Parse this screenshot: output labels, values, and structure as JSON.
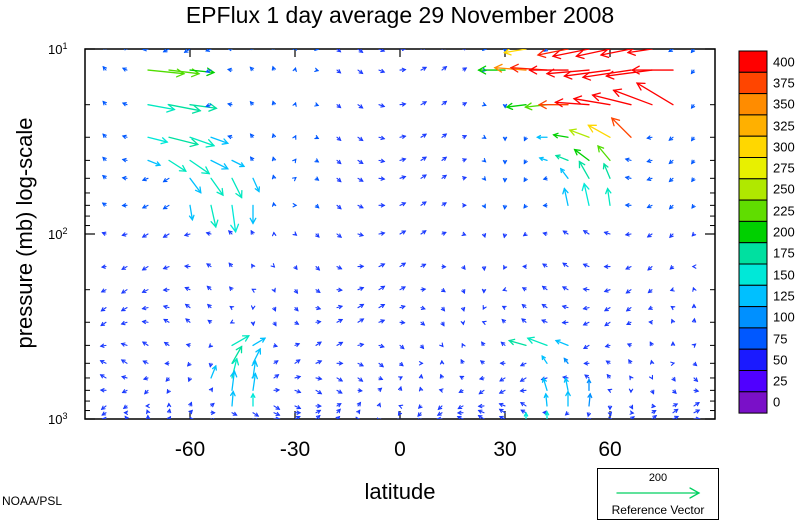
{
  "chart_data": {
    "type": "vector_field",
    "title": "EPFlux  1 day average  29 November 2008",
    "xlabel": "latitude",
    "ylabel": "pressure (mb)  log-scale",
    "y_scale": "log",
    "y_inverted": true,
    "xlim": [
      -90,
      90
    ],
    "ylim": [
      1000,
      10
    ],
    "x_tick_labels": [
      "-60",
      "-30",
      "0",
      "30",
      "60"
    ],
    "x_ticks": [
      -60,
      -30,
      0,
      30,
      60
    ],
    "y_ticks": [
      {
        "value": 10,
        "base": "10",
        "exp": "1"
      },
      {
        "value": 100,
        "base": "10",
        "exp": "2"
      },
      {
        "value": 1000,
        "base": "10",
        "exp": "3"
      }
    ],
    "grid": false,
    "colorbar": {
      "levels": [
        "400",
        "375",
        "350",
        "325",
        "300",
        "275",
        "250",
        "225",
        "200",
        "175",
        "150",
        "125",
        "100",
        "75",
        "50",
        "25",
        "0"
      ],
      "colors": [
        "#ff0000",
        "#ff4500",
        "#ff8c00",
        "#ffb000",
        "#ffd700",
        "#e8f000",
        "#b0e800",
        "#60dd00",
        "#00d000",
        "#00e0a0",
        "#00e8d8",
        "#00c0ff",
        "#0090ff",
        "#0058ff",
        "#1a1aff",
        "#5000ff",
        "#7a10c8"
      ]
    },
    "reference_vector": {
      "value": "200",
      "label": "Reference Vector",
      "color": "#00d060"
    },
    "levels_hpa": [
      10,
      13,
      20,
      30,
      40,
      50,
      70,
      100,
      150,
      200,
      250,
      300,
      400,
      500,
      600,
      700,
      850,
      925,
      1000
    ],
    "highlight_arrows": [
      {
        "lat": -72,
        "p": 13,
        "u": 3.0,
        "v": -0.3,
        "color": "#50dd00"
      },
      {
        "lat": -66,
        "p": 13,
        "u": 2.5,
        "v": -0.3,
        "color": "#50dd00"
      },
      {
        "lat": -60,
        "p": 13,
        "u": 2.0,
        "v": -0.2,
        "color": "#00d000"
      },
      {
        "lat": -72,
        "p": 20,
        "u": 2.2,
        "v": -0.4,
        "color": "#00e8c0"
      },
      {
        "lat": -66,
        "p": 20,
        "u": 2.6,
        "v": -0.5,
        "color": "#00e0a0"
      },
      {
        "lat": -60,
        "p": 20,
        "u": 2.2,
        "v": -0.3,
        "color": "#00e0a0"
      },
      {
        "lat": -72,
        "p": 30,
        "u": 1.6,
        "v": -0.4,
        "color": "#00e8d8"
      },
      {
        "lat": -66,
        "p": 30,
        "u": 2.4,
        "v": -0.6,
        "color": "#00e0a0"
      },
      {
        "lat": -60,
        "p": 30,
        "u": 2.0,
        "v": -0.7,
        "color": "#00e8c0"
      },
      {
        "lat": -54,
        "p": 30,
        "u": 1.4,
        "v": -0.5,
        "color": "#00c0ff"
      },
      {
        "lat": -72,
        "p": 40,
        "u": 1.0,
        "v": -0.4,
        "color": "#00c0ff"
      },
      {
        "lat": -66,
        "p": 40,
        "u": 1.4,
        "v": -0.9,
        "color": "#00e8c0"
      },
      {
        "lat": -60,
        "p": 40,
        "u": 1.6,
        "v": -1.1,
        "color": "#00e8c0"
      },
      {
        "lat": -54,
        "p": 40,
        "u": 1.4,
        "v": -0.7,
        "color": "#00c0ff"
      },
      {
        "lat": -48,
        "p": 40,
        "u": 1.0,
        "v": -0.5,
        "color": "#00c0ff"
      },
      {
        "lat": -60,
        "p": 50,
        "u": 0.9,
        "v": -1.2,
        "color": "#00c0ff"
      },
      {
        "lat": -54,
        "p": 50,
        "u": 1.0,
        "v": -1.4,
        "color": "#00e8c0"
      },
      {
        "lat": -48,
        "p": 50,
        "u": 0.8,
        "v": -1.6,
        "color": "#00e8c0"
      },
      {
        "lat": -42,
        "p": 50,
        "u": 0.5,
        "v": -1.1,
        "color": "#00c0ff"
      },
      {
        "lat": -60,
        "p": 70,
        "u": 0.2,
        "v": -1.2,
        "color": "#00c0ff"
      },
      {
        "lat": -54,
        "p": 70,
        "u": 0.4,
        "v": -1.8,
        "color": "#00e8c0"
      },
      {
        "lat": -48,
        "p": 70,
        "u": 0.3,
        "v": -2.2,
        "color": "#00e8d8"
      },
      {
        "lat": -42,
        "p": 70,
        "u": 0.0,
        "v": -1.5,
        "color": "#00c0ff"
      },
      {
        "lat": 72,
        "p": 10,
        "u": -2.0,
        "v": -0.3,
        "color": "#ff0000"
      },
      {
        "lat": 66,
        "p": 10,
        "u": -2.5,
        "v": -0.5,
        "color": "#ff0000"
      },
      {
        "lat": 60,
        "p": 10,
        "u": -2.8,
        "v": -0.6,
        "color": "#ff0000"
      },
      {
        "lat": 54,
        "p": 10,
        "u": -3.0,
        "v": -0.6,
        "color": "#ff0000"
      },
      {
        "lat": 48,
        "p": 10,
        "u": -2.5,
        "v": -0.5,
        "color": "#ff2000"
      },
      {
        "lat": 36,
        "p": 10,
        "u": -1.8,
        "v": -0.3,
        "color": "#ffd700"
      },
      {
        "lat": 78,
        "p": 13,
        "u": -3.4,
        "v": 0.0,
        "color": "#ff0000"
      },
      {
        "lat": 72,
        "p": 13,
        "u": -3.8,
        "v": -0.5,
        "color": "#ff0000"
      },
      {
        "lat": 66,
        "p": 13,
        "u": -4.0,
        "v": -0.6,
        "color": "#ff0000"
      },
      {
        "lat": 60,
        "p": 13,
        "u": -3.8,
        "v": -0.5,
        "color": "#ff0000"
      },
      {
        "lat": 54,
        "p": 13,
        "u": -3.5,
        "v": -0.3,
        "color": "#ff0000"
      },
      {
        "lat": 48,
        "p": 13,
        "u": -3.2,
        "v": 0.0,
        "color": "#ff0000"
      },
      {
        "lat": 42,
        "p": 13,
        "u": -3.0,
        "v": 0.2,
        "color": "#ff2000"
      },
      {
        "lat": 36,
        "p": 13,
        "u": -2.6,
        "v": 0.2,
        "color": "#ff8c00"
      },
      {
        "lat": 30,
        "p": 13,
        "u": -2.2,
        "v": 0.0,
        "color": "#00d000"
      },
      {
        "lat": 78,
        "p": 20,
        "u": -3.0,
        "v": 1.8,
        "color": "#ff0000"
      },
      {
        "lat": 72,
        "p": 20,
        "u": -3.2,
        "v": 1.2,
        "color": "#ff0000"
      },
      {
        "lat": 66,
        "p": 20,
        "u": -3.2,
        "v": 0.8,
        "color": "#ff0000"
      },
      {
        "lat": 60,
        "p": 20,
        "u": -3.0,
        "v": 0.5,
        "color": "#ff0000"
      },
      {
        "lat": 54,
        "p": 20,
        "u": -2.8,
        "v": 0.2,
        "color": "#ff0000"
      },
      {
        "lat": 48,
        "p": 20,
        "u": -2.4,
        "v": 0.0,
        "color": "#ff4500"
      },
      {
        "lat": 42,
        "p": 20,
        "u": -1.8,
        "v": -0.2,
        "color": "#50dd00"
      },
      {
        "lat": 36,
        "p": 20,
        "u": -1.6,
        "v": -0.2,
        "color": "#00d000"
      },
      {
        "lat": 66,
        "p": 30,
        "u": -1.6,
        "v": 1.6,
        "color": "#ff4500"
      },
      {
        "lat": 60,
        "p": 30,
        "u": -1.8,
        "v": 1.0,
        "color": "#ffd700"
      },
      {
        "lat": 54,
        "p": 30,
        "u": -1.6,
        "v": 0.6,
        "color": "#b0e800"
      },
      {
        "lat": 48,
        "p": 30,
        "u": -1.2,
        "v": 0.2,
        "color": "#00d000"
      },
      {
        "lat": 42,
        "p": 30,
        "u": -0.8,
        "v": 0.0,
        "color": "#00c0ff"
      },
      {
        "lat": 60,
        "p": 40,
        "u": -1.0,
        "v": 1.2,
        "color": "#50dd00"
      },
      {
        "lat": 54,
        "p": 40,
        "u": -1.2,
        "v": 0.9,
        "color": "#00d000"
      },
      {
        "lat": 48,
        "p": 40,
        "u": -1.0,
        "v": 0.4,
        "color": "#00e0a0"
      },
      {
        "lat": 42,
        "p": 40,
        "u": -0.6,
        "v": 0.2,
        "color": "#00c0ff"
      },
      {
        "lat": 60,
        "p": 50,
        "u": -0.5,
        "v": 1.2,
        "color": "#00e0a0"
      },
      {
        "lat": 54,
        "p": 50,
        "u": -0.8,
        "v": 1.4,
        "color": "#00e0a0"
      },
      {
        "lat": 48,
        "p": 50,
        "u": -0.6,
        "v": 0.8,
        "color": "#00c0ff"
      },
      {
        "lat": 60,
        "p": 70,
        "u": -0.2,
        "v": 1.4,
        "color": "#00e8c0"
      },
      {
        "lat": 54,
        "p": 70,
        "u": -0.4,
        "v": 1.8,
        "color": "#00e8d8"
      },
      {
        "lat": 48,
        "p": 70,
        "u": -0.3,
        "v": 1.4,
        "color": "#00c0ff"
      },
      {
        "lat": -48,
        "p": 400,
        "u": 1.4,
        "v": 0.8,
        "color": "#00e8c0"
      },
      {
        "lat": -42,
        "p": 400,
        "u": 1.0,
        "v": 0.6,
        "color": "#00c0ff"
      },
      {
        "lat": -48,
        "p": 500,
        "u": 0.8,
        "v": 1.4,
        "color": "#00e0a0"
      },
      {
        "lat": -42,
        "p": 500,
        "u": 0.6,
        "v": 1.2,
        "color": "#00c0ff"
      },
      {
        "lat": -54,
        "p": 600,
        "u": 0.4,
        "v": 1.0,
        "color": "#00c0ff"
      },
      {
        "lat": -48,
        "p": 600,
        "u": 0.4,
        "v": 1.6,
        "color": "#00e8c0"
      },
      {
        "lat": -42,
        "p": 600,
        "u": 0.2,
        "v": 1.4,
        "color": "#00c0ff"
      },
      {
        "lat": -48,
        "p": 700,
        "u": 0.2,
        "v": 1.6,
        "color": "#00c0ff"
      },
      {
        "lat": -42,
        "p": 700,
        "u": 0.2,
        "v": 1.4,
        "color": "#00c0ff"
      },
      {
        "lat": -48,
        "p": 850,
        "u": 0.1,
        "v": 1.2,
        "color": "#00c0ff"
      },
      {
        "lat": -42,
        "p": 850,
        "u": 0.0,
        "v": 1.0,
        "color": "#00e8d8"
      },
      {
        "lat": 36,
        "p": 400,
        "u": -1.4,
        "v": 0.4,
        "color": "#00e0a0"
      },
      {
        "lat": 42,
        "p": 400,
        "u": -1.6,
        "v": 0.6,
        "color": "#00e8c0"
      },
      {
        "lat": 48,
        "p": 400,
        "u": -1.0,
        "v": 0.4,
        "color": "#00c0ff"
      },
      {
        "lat": 42,
        "p": 500,
        "u": -0.4,
        "v": 0.6,
        "color": "#00c0ff"
      },
      {
        "lat": 48,
        "p": 500,
        "u": -0.3,
        "v": 0.4,
        "color": "#0090ff"
      },
      {
        "lat": 42,
        "p": 700,
        "u": -0.3,
        "v": 1.0,
        "color": "#00c0ff"
      },
      {
        "lat": 48,
        "p": 700,
        "u": -0.2,
        "v": 1.0,
        "color": "#00c0ff"
      },
      {
        "lat": 54,
        "p": 700,
        "u": 0.0,
        "v": 0.9,
        "color": "#0090ff"
      },
      {
        "lat": 42,
        "p": 850,
        "u": -0.1,
        "v": 1.0,
        "color": "#00c0ff"
      },
      {
        "lat": 48,
        "p": 850,
        "u": 0.0,
        "v": 1.2,
        "color": "#00c0ff"
      },
      {
        "lat": 54,
        "p": 850,
        "u": 0.1,
        "v": 1.0,
        "color": "#0090ff"
      },
      {
        "lat": 42,
        "p": 1000,
        "u": 0.0,
        "v": 0.6,
        "color": "#00e8d8"
      },
      {
        "lat": 36,
        "p": 1000,
        "u": 0.0,
        "v": 0.5,
        "color": "#00e8d8"
      }
    ]
  },
  "credit": "NOAA/PSL"
}
